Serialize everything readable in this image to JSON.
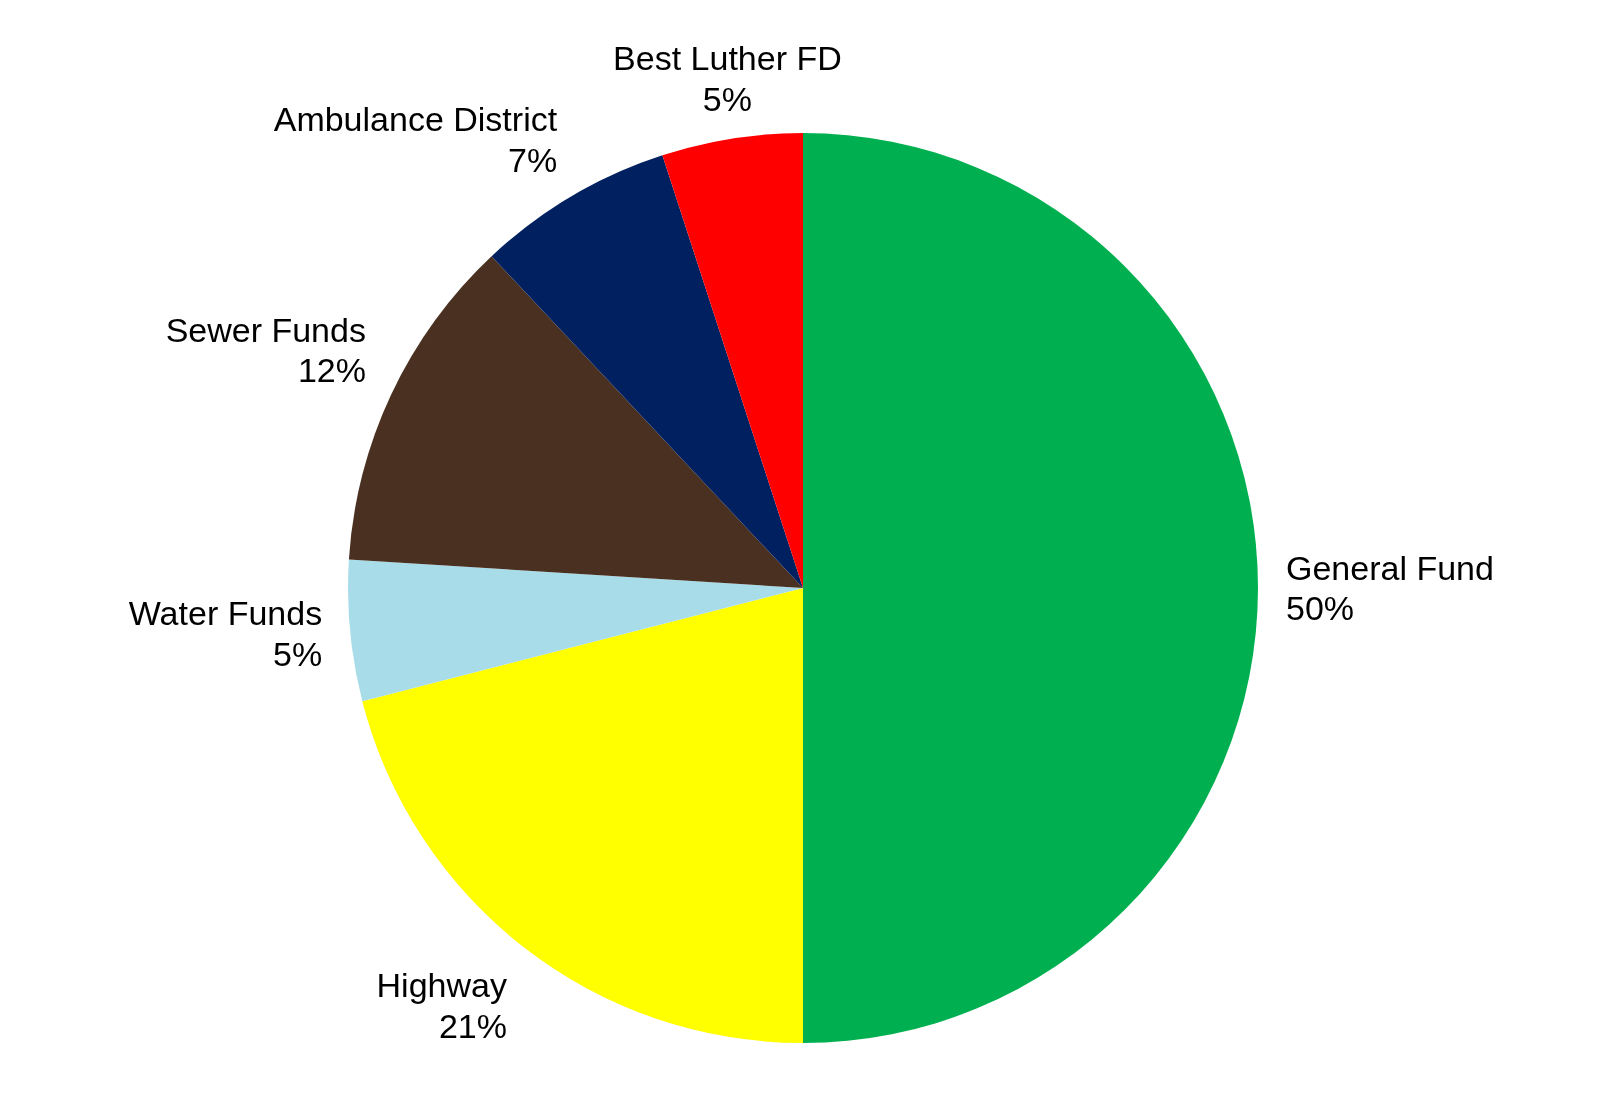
{
  "chart_data": {
    "type": "pie",
    "categories": [
      "General Fund",
      "Highway",
      "Water Funds",
      "Sewer Funds",
      "Ambulance District",
      "Best Luther FD"
    ],
    "values": [
      50,
      21,
      5,
      12,
      7,
      5
    ],
    "value_labels": [
      "50%",
      "21%",
      "5%",
      "12%",
      "7%",
      "5%"
    ],
    "colors": [
      "#00b050",
      "#ffff00",
      "#a8dce8",
      "#4a3020",
      "#002060",
      "#ff0000"
    ]
  }
}
